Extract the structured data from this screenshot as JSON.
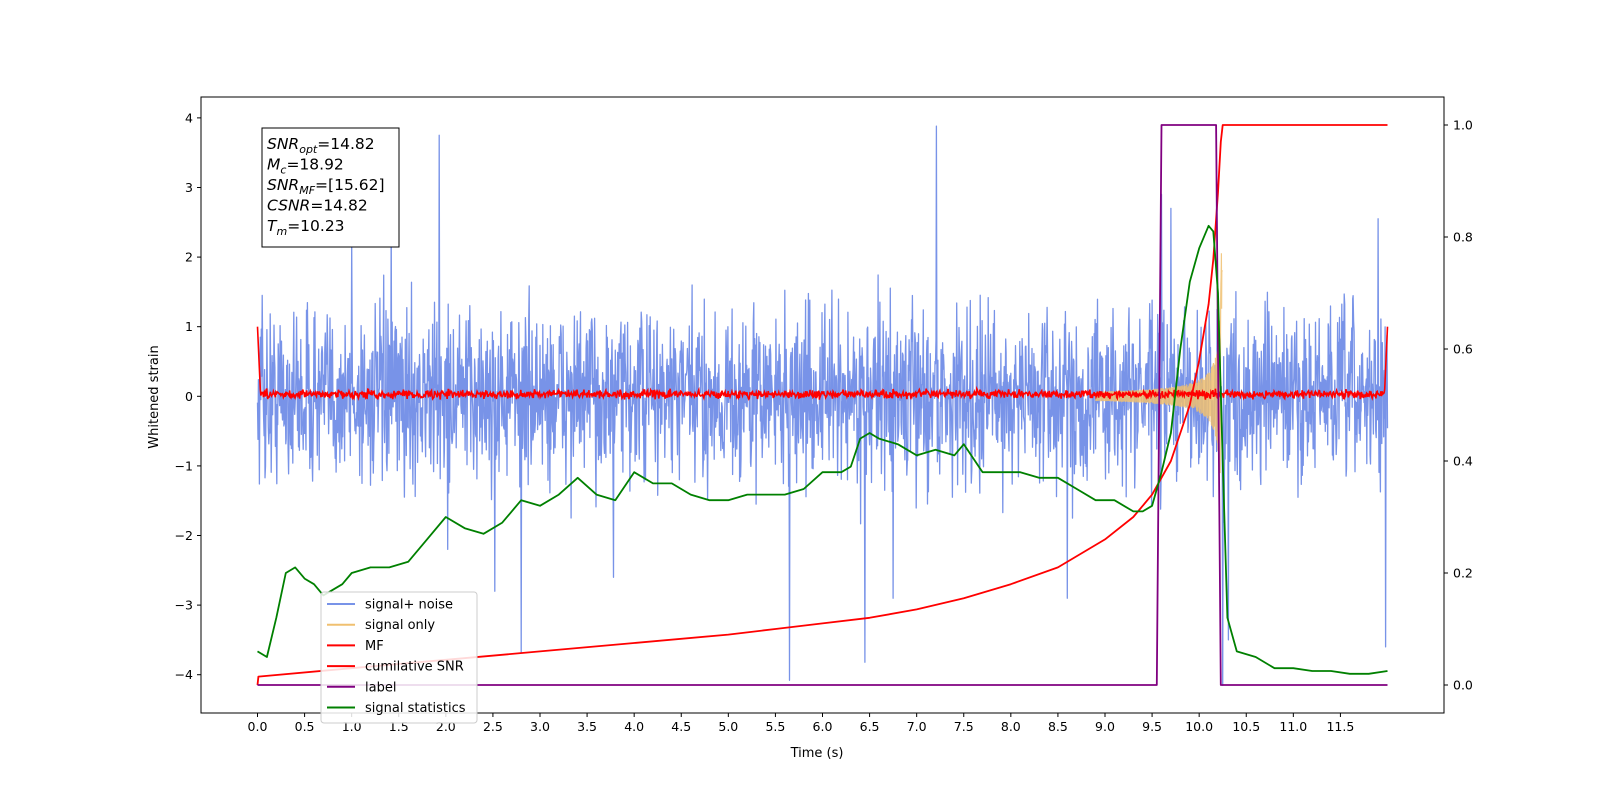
{
  "chart_data": {
    "type": "line",
    "xlabel": "Time (s)",
    "ylabel": "Whitened strain",
    "xlim": [
      -0.6,
      12.6
    ],
    "ylim": [
      -4.55,
      4.3
    ],
    "y2lim": [
      -0.05,
      1.05
    ],
    "xticks": [
      "0.0",
      "0.5",
      "1.0",
      "1.5",
      "2.0",
      "2.5",
      "3.0",
      "3.5",
      "4.0",
      "4.5",
      "5.0",
      "5.5",
      "6.0",
      "6.5",
      "7.0",
      "7.5",
      "8.0",
      "8.5",
      "9.0",
      "9.5",
      "10.0",
      "10.5",
      "11.0",
      "11.5"
    ],
    "yticks": [
      "4",
      "3",
      "2",
      "1",
      "0",
      "−1",
      "−2",
      "−3",
      "−4"
    ],
    "y2ticks": [
      "1.0",
      "0.8",
      "0.6",
      "0.4",
      "0.2",
      "0.0"
    ],
    "grid": false,
    "legend_position": "lower-left",
    "annotation": {
      "lines": [
        {
          "base": "SNR",
          "sub": "opt",
          "value": "=14.82"
        },
        {
          "base": "M",
          "sub": "c",
          "value": "=18.92"
        },
        {
          "base": "SNR",
          "sub": "MF",
          "value": "=[15.62]"
        },
        {
          "base": "CSNR",
          "sub": "",
          "value": "=14.82"
        },
        {
          "base": "T",
          "sub": "m",
          "value": "=10.23"
        }
      ]
    },
    "series": [
      {
        "name": "signal+ noise",
        "color": "#7893e8",
        "axis": "left",
        "style": "noise",
        "x_range": [
          0,
          12
        ],
        "envelope": 1.6,
        "spikes": [
          [
            0.05,
            1.45
          ],
          [
            1.0,
            2.2
          ],
          [
            1.42,
            2.6
          ],
          [
            1.93,
            3.75
          ],
          [
            2.02,
            -2.2
          ],
          [
            2.52,
            -2.8
          ],
          [
            2.8,
            -3.68
          ],
          [
            3.78,
            -2.6
          ],
          [
            5.65,
            -4.08
          ],
          [
            6.45,
            -3.82
          ],
          [
            6.75,
            -2.9
          ],
          [
            7.21,
            3.88
          ],
          [
            8.6,
            -2.9
          ],
          [
            9.6,
            2.9
          ],
          [
            9.7,
            2.7
          ],
          [
            10.25,
            -4.15
          ],
          [
            10.31,
            -3.5
          ],
          [
            11.9,
            2.55
          ],
          [
            11.98,
            -3.6
          ]
        ]
      },
      {
        "name": "signal only",
        "color": "#f0c070",
        "axis": "left",
        "style": "chirp",
        "x_range": [
          8.9,
          10.25
        ],
        "peak_amplitude": 2.6
      },
      {
        "name": "MF",
        "color": "#ff0000",
        "axis": "left",
        "style": "mf",
        "x_range": [
          0,
          12
        ],
        "noise_amp": 0.07,
        "edge_points": [
          [
            0,
            1.0
          ],
          [
            0.03,
            0.1
          ],
          [
            11.97,
            0.1
          ],
          [
            12.0,
            1.0
          ]
        ]
      },
      {
        "name": "cumilative SNR",
        "color": "#ff0000",
        "axis": "right",
        "style": "line",
        "x": [
          0,
          0.01,
          1,
          2,
          3,
          4,
          5,
          5.5,
          6,
          6.5,
          7,
          7.5,
          8,
          8.5,
          9,
          9.3,
          9.5,
          9.7,
          9.9,
          10.0,
          10.1,
          10.15,
          10.2,
          10.23,
          10.25,
          10.3,
          11,
          12
        ],
        "y": [
          0.0,
          0.015,
          0.03,
          0.045,
          0.06,
          0.075,
          0.09,
          0.1,
          0.11,
          0.12,
          0.135,
          0.155,
          0.18,
          0.21,
          0.26,
          0.3,
          0.34,
          0.4,
          0.5,
          0.58,
          0.68,
          0.76,
          0.88,
          0.97,
          1.0,
          1.0,
          1.0,
          1.0
        ]
      },
      {
        "name": "label",
        "color": "#800080",
        "axis": "right",
        "style": "line",
        "x": [
          0,
          9.55,
          9.6,
          10.18,
          10.23,
          12
        ],
        "y": [
          0,
          0,
          1,
          1,
          0,
          0
        ]
      },
      {
        "name": "signal statistics",
        "color": "#008000",
        "axis": "right",
        "style": "line",
        "x": [
          0,
          0.1,
          0.2,
          0.3,
          0.4,
          0.5,
          0.6,
          0.7,
          0.8,
          0.9,
          1.0,
          1.2,
          1.4,
          1.6,
          1.8,
          2.0,
          2.2,
          2.4,
          2.6,
          2.8,
          3.0,
          3.2,
          3.4,
          3.6,
          3.8,
          4.0,
          4.2,
          4.4,
          4.6,
          4.8,
          5.0,
          5.2,
          5.4,
          5.6,
          5.8,
          6.0,
          6.2,
          6.3,
          6.4,
          6.5,
          6.6,
          6.8,
          7.0,
          7.2,
          7.4,
          7.5,
          7.7,
          7.9,
          8.1,
          8.3,
          8.5,
          8.7,
          8.9,
          9.1,
          9.3,
          9.4,
          9.5,
          9.6,
          9.7,
          9.8,
          9.9,
          10.0,
          10.1,
          10.15,
          10.2,
          10.25,
          10.3,
          10.4,
          10.6,
          10.8,
          11.0,
          11.2,
          11.4,
          11.6,
          11.8,
          12.0
        ],
        "y": [
          0.06,
          0.05,
          0.12,
          0.2,
          0.21,
          0.19,
          0.18,
          0.16,
          0.17,
          0.18,
          0.2,
          0.21,
          0.21,
          0.22,
          0.26,
          0.3,
          0.28,
          0.27,
          0.29,
          0.33,
          0.32,
          0.34,
          0.37,
          0.34,
          0.33,
          0.38,
          0.36,
          0.36,
          0.34,
          0.33,
          0.33,
          0.34,
          0.34,
          0.34,
          0.35,
          0.38,
          0.38,
          0.39,
          0.44,
          0.45,
          0.44,
          0.43,
          0.41,
          0.42,
          0.41,
          0.43,
          0.38,
          0.38,
          0.38,
          0.37,
          0.37,
          0.35,
          0.33,
          0.33,
          0.31,
          0.31,
          0.32,
          0.38,
          0.45,
          0.6,
          0.72,
          0.78,
          0.82,
          0.81,
          0.7,
          0.4,
          0.12,
          0.06,
          0.05,
          0.03,
          0.03,
          0.025,
          0.025,
          0.02,
          0.02,
          0.025
        ]
      }
    ]
  }
}
